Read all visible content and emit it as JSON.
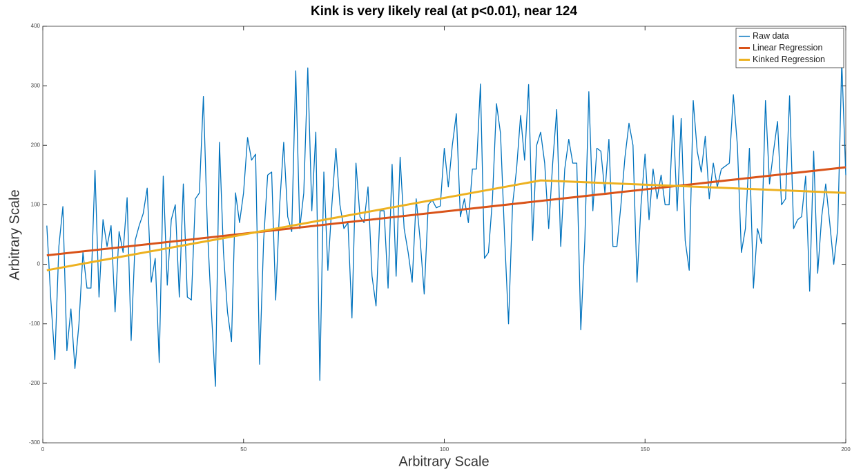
{
  "chart_data": {
    "type": "line",
    "title": "Kink is very likely real (at p<0.01), near 124",
    "xlabel": "Arbitrary Scale",
    "ylabel": "Arbitrary Scale",
    "xlim": [
      0,
      200
    ],
    "ylim": [
      -300,
      400
    ],
    "xticks": [
      0,
      50,
      100,
      150,
      200
    ],
    "yticks": [
      -300,
      -200,
      -100,
      0,
      100,
      200,
      300,
      400
    ],
    "grid": false,
    "legend": "upper right",
    "series": [
      {
        "name": "Raw data",
        "color": "#0072BD",
        "width": 1.3,
        "x": [
          1,
          2,
          3,
          4,
          5,
          6,
          7,
          8,
          9,
          10,
          11,
          12,
          13,
          14,
          15,
          16,
          17,
          18,
          19,
          20,
          21,
          22,
          23,
          24,
          25,
          26,
          27,
          28,
          29,
          30,
          31,
          32,
          33,
          34,
          35,
          36,
          37,
          38,
          39,
          40,
          41,
          42,
          43,
          44,
          45,
          46,
          47,
          48,
          49,
          50,
          51,
          52,
          53,
          54,
          55,
          56,
          57,
          58,
          59,
          60,
          61,
          62,
          63,
          64,
          65,
          66,
          67,
          68,
          69,
          70,
          71,
          72,
          73,
          74,
          75,
          76,
          77,
          78,
          79,
          80,
          81,
          82,
          83,
          84,
          85,
          86,
          87,
          88,
          89,
          90,
          91,
          92,
          93,
          94,
          95,
          96,
          97,
          98,
          99,
          100,
          101,
          102,
          103,
          104,
          105,
          106,
          107,
          108,
          109,
          110,
          111,
          112,
          113,
          114,
          115,
          116,
          117,
          118,
          119,
          120,
          121,
          122,
          123,
          124,
          125,
          126,
          127,
          128,
          129,
          130,
          131,
          132,
          133,
          134,
          135,
          136,
          137,
          138,
          139,
          140,
          141,
          142,
          143,
          144,
          145,
          146,
          147,
          148,
          149,
          150,
          151,
          152,
          153,
          154,
          155,
          156,
          157,
          158,
          159,
          160,
          161,
          162,
          163,
          164,
          165,
          166,
          167,
          168,
          169,
          170,
          171,
          172,
          173,
          174,
          175,
          176,
          177,
          178,
          179,
          180,
          181,
          182,
          183,
          184,
          185,
          186,
          187,
          188,
          189,
          190,
          191,
          192,
          193,
          194,
          195,
          196,
          197,
          198,
          199,
          200
        ],
        "values": [
          65,
          -60,
          -160,
          30,
          97,
          -145,
          -75,
          -175,
          -100,
          20,
          -40,
          -40,
          158,
          -55,
          75,
          30,
          65,
          -80,
          55,
          20,
          112,
          -128,
          40,
          65,
          85,
          128,
          -30,
          10,
          -165,
          148,
          -35,
          75,
          100,
          -55,
          135,
          -55,
          -60,
          110,
          120,
          282,
          60,
          -80,
          -205,
          205,
          20,
          -80,
          -130,
          120,
          70,
          120,
          213,
          175,
          185,
          -168,
          40,
          150,
          155,
          -60,
          100,
          205,
          80,
          55,
          325,
          60,
          120,
          330,
          90,
          222,
          -195,
          155,
          -10,
          100,
          195,
          100,
          60,
          70,
          -90,
          170,
          80,
          70,
          130,
          -20,
          -70,
          90,
          90,
          -40,
          168,
          -20,
          180,
          60,
          20,
          -30,
          110,
          40,
          -50,
          100,
          108,
          95,
          98,
          195,
          130,
          200,
          253,
          80,
          110,
          70,
          160,
          160,
          303,
          10,
          20,
          110,
          270,
          220,
          50,
          -100,
          100,
          160,
          250,
          175,
          302,
          40,
          200,
          222,
          170,
          60,
          170,
          260,
          30,
          160,
          210,
          170,
          170,
          -110,
          40,
          290,
          90,
          195,
          190,
          120,
          210,
          30,
          30,
          100,
          180,
          237,
          200,
          -30,
          100,
          185,
          75,
          160,
          110,
          150,
          100,
          100,
          250,
          90,
          245,
          40,
          -10,
          275,
          190,
          155,
          215,
          110,
          170,
          130,
          160,
          165,
          170,
          285,
          200,
          20,
          60,
          195,
          -40,
          60,
          35,
          275,
          135,
          190,
          240,
          100,
          110,
          283,
          60,
          75,
          80,
          148,
          -45,
          190,
          -15,
          80,
          135,
          70,
          0,
          60,
          340,
          150
        ]
      },
      {
        "name": "Linear Regression",
        "color": "#D95319",
        "width": 3,
        "x": [
          1,
          200
        ],
        "values": [
          15,
          163
        ]
      },
      {
        "name": "Kinked Regression",
        "color": "#EDB120",
        "width": 3,
        "x": [
          1,
          124,
          200
        ],
        "values": [
          -10,
          141,
          120
        ]
      }
    ]
  }
}
